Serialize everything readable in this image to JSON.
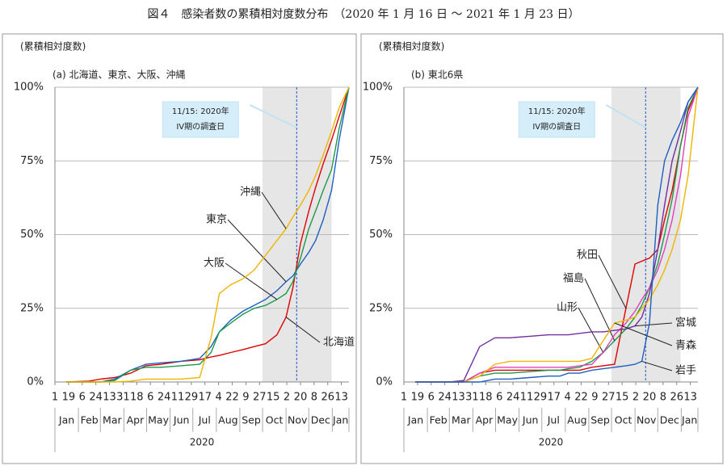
{
  "title": "図４　感染者数の累積相対度数分布　（2020 年 1 月 16 日 ～ 2021 年 1 月 23 日）",
  "chart_data": [
    {
      "type": "line",
      "y_axis_label": "(累積相対度数)",
      "subtitle": "(a) 北海道、東京、大阪、沖縄",
      "x": [
        "2020-01-16",
        "2020-02-15",
        "2020-03-01",
        "2020-03-20",
        "2020-04-10",
        "2020-04-30",
        "2020-05-20",
        "2020-06-15",
        "2020-07-10",
        "2020-07-25",
        "2020-08-05",
        "2020-08-20",
        "2020-09-05",
        "2020-09-20",
        "2020-10-05",
        "2020-10-20",
        "2020-11-01",
        "2020-11-10",
        "2020-11-20",
        "2020-12-01",
        "2020-12-10",
        "2020-12-20",
        "2020-12-31",
        "2021-01-10",
        "2021-01-23"
      ],
      "series": [
        {
          "name": "北海道",
          "color": "#e00000",
          "values": [
            0,
            0.3,
            1,
            1.5,
            3,
            5.5,
            6,
            7,
            7.5,
            8.5,
            9,
            10,
            11,
            12,
            13,
            16,
            22,
            32,
            47,
            58,
            66,
            74,
            82,
            90,
            100
          ]
        },
        {
          "name": "東京",
          "color": "#1f5fbf",
          "values": [
            0,
            0,
            0,
            1,
            4,
            6,
            6.5,
            7,
            8,
            12,
            17,
            21,
            24,
            26,
            28,
            31,
            34,
            36,
            40,
            44,
            48,
            55,
            65,
            82,
            100
          ]
        },
        {
          "name": "大阪",
          "color": "#1a9a4a",
          "values": [
            0,
            0,
            0,
            0.5,
            4,
            5,
            5,
            5.5,
            6,
            10,
            17,
            20,
            23,
            25,
            26,
            28,
            30,
            34,
            42,
            52,
            58,
            65,
            72,
            86,
            100
          ]
        },
        {
          "name": "沖縄",
          "color": "#f0b400",
          "values": [
            0,
            0,
            0,
            0,
            0.3,
            1,
            1,
            1,
            1.5,
            15,
            30,
            33,
            35,
            38,
            43,
            48,
            52,
            56,
            60,
            65,
            70,
            77,
            85,
            93,
            100
          ]
        }
      ],
      "xlim": [
        "2020-01-01",
        "2021-01-23"
      ],
      "xticks": [
        {
          "value": "2020-01-01",
          "label": "1"
        },
        {
          "value": "2020-01-19",
          "label": "19"
        },
        {
          "value": "2020-02-06",
          "label": "6"
        },
        {
          "value": "2020-02-24",
          "label": "24"
        },
        {
          "value": "2020-03-13",
          "label": "13"
        },
        {
          "value": "2020-03-31",
          "label": "31"
        },
        {
          "value": "2020-04-18",
          "label": "18"
        },
        {
          "value": "2020-05-06",
          "label": "6"
        },
        {
          "value": "2020-05-24",
          "label": "24"
        },
        {
          "value": "2020-06-11",
          "label": "11"
        },
        {
          "value": "2020-06-29",
          "label": "29"
        },
        {
          "value": "2020-07-17",
          "label": "17"
        },
        {
          "value": "2020-08-04",
          "label": "4"
        },
        {
          "value": "2020-08-22",
          "label": "22"
        },
        {
          "value": "2020-09-09",
          "label": "9"
        },
        {
          "value": "2020-09-27",
          "label": "27"
        },
        {
          "value": "2020-10-15",
          "label": "15"
        },
        {
          "value": "2020-11-02",
          "label": "2"
        },
        {
          "value": "2020-11-20",
          "label": "20"
        },
        {
          "value": "2020-12-08",
          "label": "8"
        },
        {
          "value": "2020-12-26",
          "label": "26"
        },
        {
          "value": "2021-01-13",
          "label": "13"
        }
      ],
      "month_labels": [
        {
          "value": "2020-01",
          "label": "Jan"
        },
        {
          "value": "2020-02",
          "label": "Feb"
        },
        {
          "value": "2020-03",
          "label": "Mar"
        },
        {
          "value": "2020-04",
          "label": "Apr"
        },
        {
          "value": "2020-05",
          "label": "May"
        },
        {
          "value": "2020-06",
          "label": "Jun"
        },
        {
          "value": "2020-07",
          "label": "Jul"
        },
        {
          "value": "2020-08",
          "label": "Aug"
        },
        {
          "value": "2020-09",
          "label": "Sep"
        },
        {
          "value": "2020-10",
          "label": "Oct"
        },
        {
          "value": "2020-11",
          "label": "Nov"
        },
        {
          "value": "2020-12",
          "label": "Dec"
        },
        {
          "value": "2021-01",
          "label": "Jan"
        }
      ],
      "year_label": "2020",
      "ylim": [
        0,
        100
      ],
      "yticks": [
        {
          "value": 0,
          "label": "0%"
        },
        {
          "value": 25,
          "label": "25%"
        },
        {
          "value": 50,
          "label": "50%"
        },
        {
          "value": 75,
          "label": "75%"
        },
        {
          "value": 100,
          "label": "100%"
        }
      ],
      "grid": true,
      "highlight_range": [
        "2020-10-01",
        "2020-12-31"
      ],
      "annotation": {
        "date": "2020-11-15",
        "text": [
          "11/15: 2020年",
          "IV期の調査日"
        ]
      }
    },
    {
      "type": "line",
      "y_axis_label": "(累積相対度数)",
      "subtitle": "(b) 東北6県",
      "x": [
        "2020-01-16",
        "2020-02-15",
        "2020-03-01",
        "2020-03-20",
        "2020-04-10",
        "2020-04-30",
        "2020-05-20",
        "2020-06-15",
        "2020-07-10",
        "2020-07-25",
        "2020-08-05",
        "2020-08-20",
        "2020-09-05",
        "2020-09-20",
        "2020-10-05",
        "2020-10-20",
        "2020-11-01",
        "2020-11-10",
        "2020-11-20",
        "2020-12-01",
        "2020-12-10",
        "2020-12-20",
        "2020-12-31",
        "2021-01-10",
        "2021-01-23"
      ],
      "series": [
        {
          "name": "秋田",
          "color": "#e00000",
          "values": [
            0,
            0,
            0,
            0,
            3,
            4,
            4,
            4,
            4,
            4,
            4,
            4,
            5,
            5.5,
            6,
            25,
            40,
            41,
            42,
            45,
            55,
            65,
            80,
            92,
            100
          ]
        },
        {
          "name": "福島",
          "color": "#1a9a4a",
          "values": [
            0,
            0,
            0,
            0,
            2,
            3,
            3,
            3.5,
            4,
            4,
            4.5,
            5,
            7,
            10,
            14,
            18,
            22,
            26,
            32,
            40,
            50,
            62,
            80,
            93,
            100
          ]
        },
        {
          "name": "山形",
          "color": "#e040c0",
          "values": [
            0,
            0,
            0,
            0,
            3,
            5,
            5,
            5,
            5,
            5,
            5,
            5.5,
            6,
            10,
            16,
            20,
            24,
            28,
            32,
            38,
            45,
            55,
            70,
            90,
            100
          ]
        },
        {
          "name": "宮城",
          "color": "#7030a0",
          "values": [
            0,
            0,
            0,
            0.5,
            12,
            15,
            15,
            15.5,
            16,
            16,
            16,
            16.5,
            17,
            17,
            17.5,
            18,
            19,
            22,
            30,
            45,
            60,
            75,
            85,
            95,
            100
          ]
        },
        {
          "name": "青森",
          "color": "#f0b400",
          "values": [
            0,
            0,
            0,
            0,
            2,
            6,
            7,
            7,
            7,
            7,
            7,
            7,
            8,
            14,
            20,
            21,
            22,
            25,
            28,
            33,
            38,
            45,
            55,
            70,
            100
          ]
        },
        {
          "name": "岩手",
          "color": "#1f5fbf",
          "values": [
            0,
            0,
            0,
            0,
            0,
            1,
            1,
            1.5,
            2,
            2,
            3,
            3,
            4,
            4.5,
            5,
            5.5,
            6,
            7,
            20,
            60,
            75,
            82,
            88,
            95,
            100
          ]
        }
      ],
      "xlim": [
        "2020-01-01",
        "2021-01-23"
      ],
      "xticks": [
        {
          "value": "2020-01-01",
          "label": "1"
        },
        {
          "value": "2020-01-19",
          "label": "19"
        },
        {
          "value": "2020-02-06",
          "label": "6"
        },
        {
          "value": "2020-02-24",
          "label": "24"
        },
        {
          "value": "2020-03-13",
          "label": "13"
        },
        {
          "value": "2020-03-31",
          "label": "31"
        },
        {
          "value": "2020-04-18",
          "label": "18"
        },
        {
          "value": "2020-05-06",
          "label": "6"
        },
        {
          "value": "2020-05-24",
          "label": "24"
        },
        {
          "value": "2020-06-11",
          "label": "11"
        },
        {
          "value": "2020-06-29",
          "label": "29"
        },
        {
          "value": "2020-07-17",
          "label": "17"
        },
        {
          "value": "2020-08-04",
          "label": "4"
        },
        {
          "value": "2020-08-22",
          "label": "22"
        },
        {
          "value": "2020-09-09",
          "label": "9"
        },
        {
          "value": "2020-09-27",
          "label": "27"
        },
        {
          "value": "2020-10-15",
          "label": "15"
        },
        {
          "value": "2020-11-02",
          "label": "2"
        },
        {
          "value": "2020-11-20",
          "label": "20"
        },
        {
          "value": "2020-12-08",
          "label": "8"
        },
        {
          "value": "2020-12-26",
          "label": "26"
        },
        {
          "value": "2021-01-13",
          "label": "13"
        }
      ],
      "month_labels": [
        {
          "value": "2020-01",
          "label": "Jan"
        },
        {
          "value": "2020-02",
          "label": "Feb"
        },
        {
          "value": "2020-03",
          "label": "Mar"
        },
        {
          "value": "2020-04",
          "label": "Apr"
        },
        {
          "value": "2020-05",
          "label": "May"
        },
        {
          "value": "2020-06",
          "label": "Jun"
        },
        {
          "value": "2020-07",
          "label": "Jul"
        },
        {
          "value": "2020-08",
          "label": "Aug"
        },
        {
          "value": "2020-09",
          "label": "Sep"
        },
        {
          "value": "2020-10",
          "label": "Oct"
        },
        {
          "value": "2020-11",
          "label": "Nov"
        },
        {
          "value": "2020-12",
          "label": "Dec"
        },
        {
          "value": "2021-01",
          "label": "Jan"
        }
      ],
      "year_label": "2020",
      "ylim": [
        0,
        100
      ],
      "yticks": [
        {
          "value": 0,
          "label": "0%"
        },
        {
          "value": 25,
          "label": "25%"
        },
        {
          "value": 50,
          "label": "50%"
        },
        {
          "value": 75,
          "label": "75%"
        },
        {
          "value": 100,
          "label": "100%"
        }
      ],
      "grid": true,
      "highlight_range": [
        "2020-10-01",
        "2020-12-31"
      ],
      "annotation": {
        "date": "2020-11-15",
        "text": [
          "11/15: 2020年",
          "IV期の調査日"
        ]
      }
    }
  ]
}
